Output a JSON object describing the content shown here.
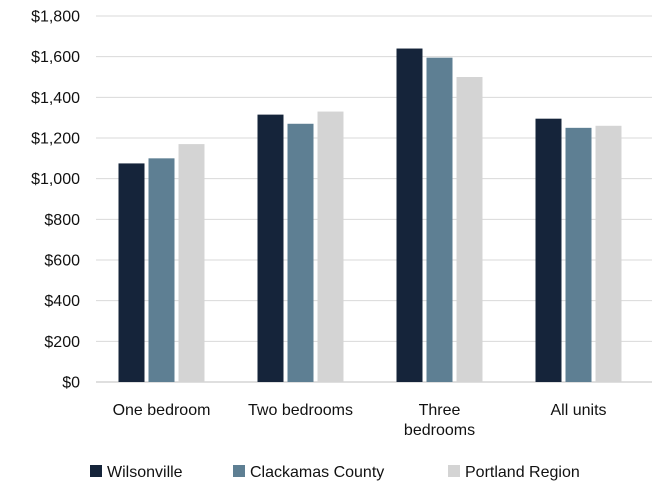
{
  "chart_data": {
    "type": "bar",
    "title": "",
    "xlabel": "",
    "ylabel": "",
    "categories": [
      "One bedroom",
      "Two bedrooms",
      "Three bedrooms",
      "All units"
    ],
    "category_lines": [
      [
        "One bedroom"
      ],
      [
        "Two bedrooms"
      ],
      [
        "Three",
        "bedrooms"
      ],
      [
        "All units"
      ]
    ],
    "series": [
      {
        "name": "Wilsonville",
        "color": "#15243a",
        "values": [
          1075,
          1315,
          1640,
          1295
        ]
      },
      {
        "name": "Clackamas County",
        "color": "#5e7f93",
        "values": [
          1100,
          1270,
          1595,
          1250
        ]
      },
      {
        "name": "Portland Region",
        "color": "#d4d4d4",
        "values": [
          1170,
          1330,
          1500,
          1260
        ]
      }
    ],
    "ylim": [
      0,
      1800
    ],
    "yticks": [
      0,
      200,
      400,
      600,
      800,
      1000,
      1200,
      1400,
      1600,
      1800
    ],
    "ytick_labels": [
      "$0",
      "$200",
      "$400",
      "$600",
      "$800",
      "$1,000",
      "$1,200",
      "$1,400",
      "$1,600",
      "$1,800"
    ],
    "grid": true,
    "legend_position": "bottom"
  }
}
